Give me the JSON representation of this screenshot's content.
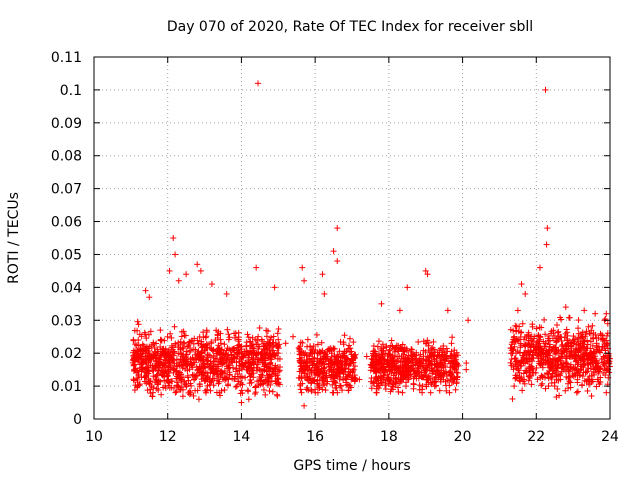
{
  "chart_data": {
    "type": "scatter",
    "title": "Day 070 of 2020, Rate Of TEC Index for receiver sbll",
    "xlabel": "GPS time / hours",
    "ylabel": "ROTI / TECUs",
    "xlim": [
      10,
      24
    ],
    "ylim": [
      0,
      0.11
    ],
    "xticks": [
      "10",
      "12",
      "14",
      "16",
      "18",
      "20",
      "22",
      "24"
    ],
    "yticks": [
      "0",
      "0.01",
      "0.02",
      "0.03",
      "0.04",
      "0.05",
      "0.06",
      "0.07",
      "0.08",
      "0.09",
      "0.1",
      "0.11"
    ],
    "grid": true,
    "marker": "+",
    "color": "#ff0000",
    "series": [
      {
        "name": "ROTI",
        "x": [
          14.45,
          22.25,
          16.6,
          22.3,
          22.28,
          12.15,
          12.2,
          12.05,
          12.3,
          11.4,
          11.5,
          12.5,
          12.8,
          12.9,
          13.2,
          13.6,
          14.4,
          14.9,
          15.65,
          15.7,
          16.2,
          16.25,
          16.5,
          16.6,
          17.8,
          18.3,
          18.5,
          19.0,
          19.05,
          19.6,
          20.15,
          21.5,
          21.6,
          21.7,
          22.1,
          22.8,
          23.3,
          23.85,
          23.9,
          15.7,
          11.6,
          12.7,
          13.4,
          14.2,
          16.0,
          16.7,
          17.2,
          17.6,
          18.1,
          18.9,
          19.4,
          20.1,
          21.4,
          22.5,
          23.1,
          23.5,
          23.9,
          14.0,
          11.1,
          11.2,
          11.3,
          11.5,
          12.0,
          12.4,
          13.0,
          13.5,
          14.1,
          14.6,
          15.0,
          15.2,
          16.1,
          16.4,
          16.8,
          17.0,
          17.4,
          17.9,
          18.2,
          18.6,
          19.1,
          19.5,
          20.1,
          21.45,
          21.8,
          22.0,
          22.6,
          22.9,
          23.2,
          23.6,
          23.95,
          11.8,
          13.8,
          15.4,
          17.7,
          18.4,
          19.7,
          21.9,
          22.4,
          23.0,
          23.7
        ],
        "y": [
          0.102,
          0.1,
          0.058,
          0.058,
          0.053,
          0.055,
          0.05,
          0.045,
          0.042,
          0.039,
          0.037,
          0.044,
          0.047,
          0.045,
          0.041,
          0.038,
          0.046,
          0.04,
          0.046,
          0.042,
          0.044,
          0.038,
          0.051,
          0.048,
          0.035,
          0.033,
          0.04,
          0.045,
          0.044,
          0.033,
          0.03,
          0.033,
          0.041,
          0.038,
          0.046,
          0.034,
          0.033,
          0.03,
          0.032,
          0.004,
          0.008,
          0.007,
          0.008,
          0.006,
          0.009,
          0.01,
          0.012,
          0.011,
          0.01,
          0.009,
          0.012,
          0.015,
          0.01,
          0.01,
          0.008,
          0.007,
          0.008,
          0.005,
          0.018,
          0.024,
          0.015,
          0.022,
          0.02,
          0.019,
          0.021,
          0.018,
          0.017,
          0.022,
          0.02,
          0.023,
          0.016,
          0.015,
          0.017,
          0.018,
          0.019,
          0.02,
          0.016,
          0.015,
          0.019,
          0.018,
          0.017,
          0.02,
          0.025,
          0.022,
          0.021,
          0.019,
          0.018,
          0.017,
          0.015,
          0.027,
          0.026,
          0.025,
          0.022,
          0.021,
          0.023,
          0.028,
          0.026,
          0.024,
          0.022
        ]
      }
    ],
    "dense_clusters": [
      {
        "x": [
          11.05,
          15.05
        ],
        "y": [
          0.006,
          0.03
        ],
        "peak": 0.017
      },
      {
        "x": [
          15.55,
          17.1
        ],
        "y": [
          0.008,
          0.028
        ],
        "peak": 0.016
      },
      {
        "x": [
          17.5,
          19.9
        ],
        "y": [
          0.008,
          0.027
        ],
        "peak": 0.016
      },
      {
        "x": [
          21.3,
          24.0
        ],
        "y": [
          0.006,
          0.032
        ],
        "peak": 0.019
      }
    ]
  }
}
